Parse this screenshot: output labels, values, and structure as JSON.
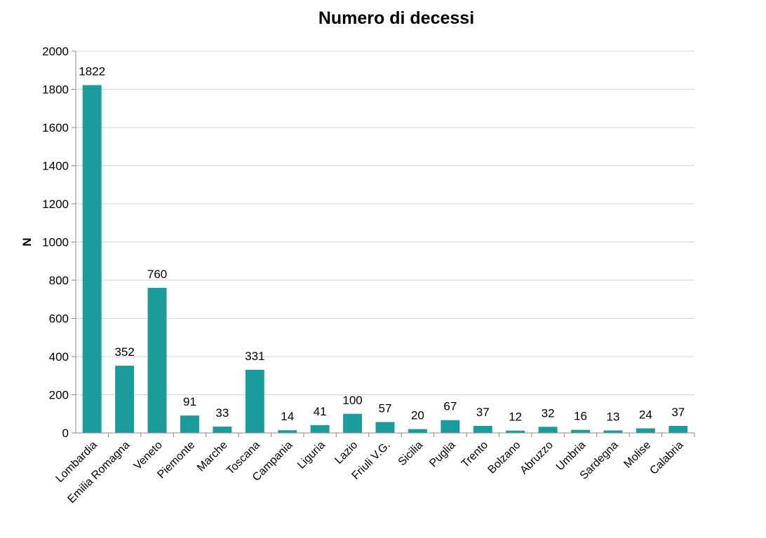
{
  "chart_data": {
    "type": "bar",
    "title": "Numero di decessi",
    "xlabel": "",
    "ylabel": "N",
    "ylim": [
      0,
      2000
    ],
    "yticks": [
      0,
      200,
      400,
      600,
      800,
      1000,
      1200,
      1400,
      1600,
      1800,
      2000
    ],
    "grid": true,
    "legend": "none",
    "bar_color": "#1b9c9c",
    "categories": [
      "Lombardia",
      "Emilia Romagna",
      "Veneto",
      "Piemonte",
      "Marche",
      "Toscana",
      "Campania",
      "Liguria",
      "Lazio",
      "Friuli V.G.",
      "Sicilia",
      "Puglia",
      "Trento",
      "Bolzano",
      "Abruzzo",
      "Umbria",
      "Sardegna",
      "Molise",
      "Calabria"
    ],
    "values": [
      1822,
      352,
      760,
      91,
      33,
      331,
      14,
      41,
      100,
      57,
      20,
      67,
      37,
      12,
      32,
      16,
      13,
      24,
      37
    ]
  }
}
